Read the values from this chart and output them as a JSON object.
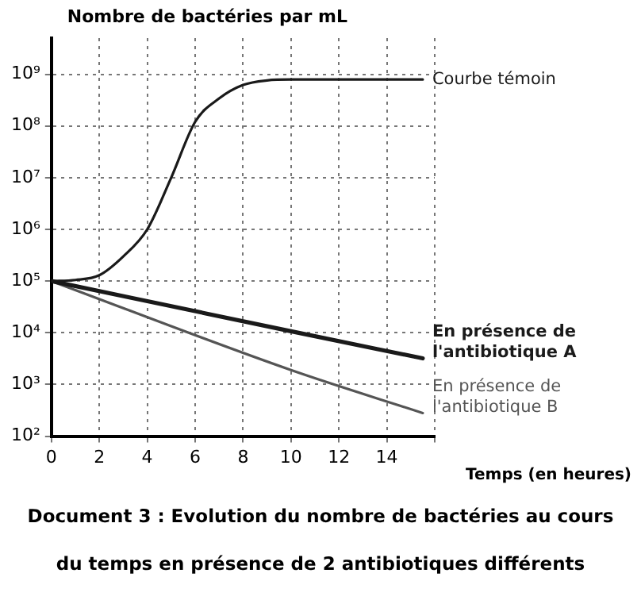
{
  "chart_data": {
    "type": "line",
    "title": "Document 3 : Evolution du nombre de bactéries au cours du temps en présence de 2 antibiotiques différents",
    "xlabel": "Temps (en heures)",
    "ylabel": "Nombre de bactéries par mL",
    "log": "y",
    "grid": true,
    "line_style": "solid",
    "marker": "none",
    "xlim": [
      0,
      16
    ],
    "xticks": [
      0,
      2,
      4,
      6,
      8,
      10,
      12,
      14,
      {
        "value": 16,
        "label": null
      }
    ],
    "ylim": [
      100,
      5000000000
    ],
    "yticks": [
      {
        "value": 100,
        "label": "10²"
      },
      {
        "value": 1000,
        "label": "10³"
      },
      {
        "value": 10000,
        "label": "10⁴"
      },
      {
        "value": 100000,
        "label": "10⁵"
      },
      {
        "value": 1000000,
        "label": "10⁶"
      },
      {
        "value": 10000000,
        "label": "10⁷"
      },
      {
        "value": 100000000,
        "label": "10⁸"
      },
      {
        "value": 1000000000,
        "label": "10⁹"
      }
    ],
    "series": [
      {
        "name": "Courbe témoin",
        "color": "#1a1a1a",
        "x": [
          0,
          1,
          2,
          3,
          4,
          5,
          6,
          7,
          8,
          9,
          10,
          12,
          14,
          15.5
        ],
        "values": [
          100000,
          105000,
          130000,
          300000,
          1000000,
          10000000,
          120000000,
          340000000,
          620000000,
          760000000,
          790000000,
          790000000,
          790000000,
          790000000
        ]
      },
      {
        "name": "En présence de l'antibiotique A",
        "color": "#1a1a1a",
        "x": [
          0,
          10,
          15.5
        ],
        "values": [
          100000,
          10700,
          3200
        ]
      },
      {
        "name": "En présence de l'antibiotique B",
        "color": "#555555",
        "x": [
          0,
          10,
          15.5
        ],
        "values": [
          100000,
          1900,
          280
        ]
      }
    ]
  }
}
